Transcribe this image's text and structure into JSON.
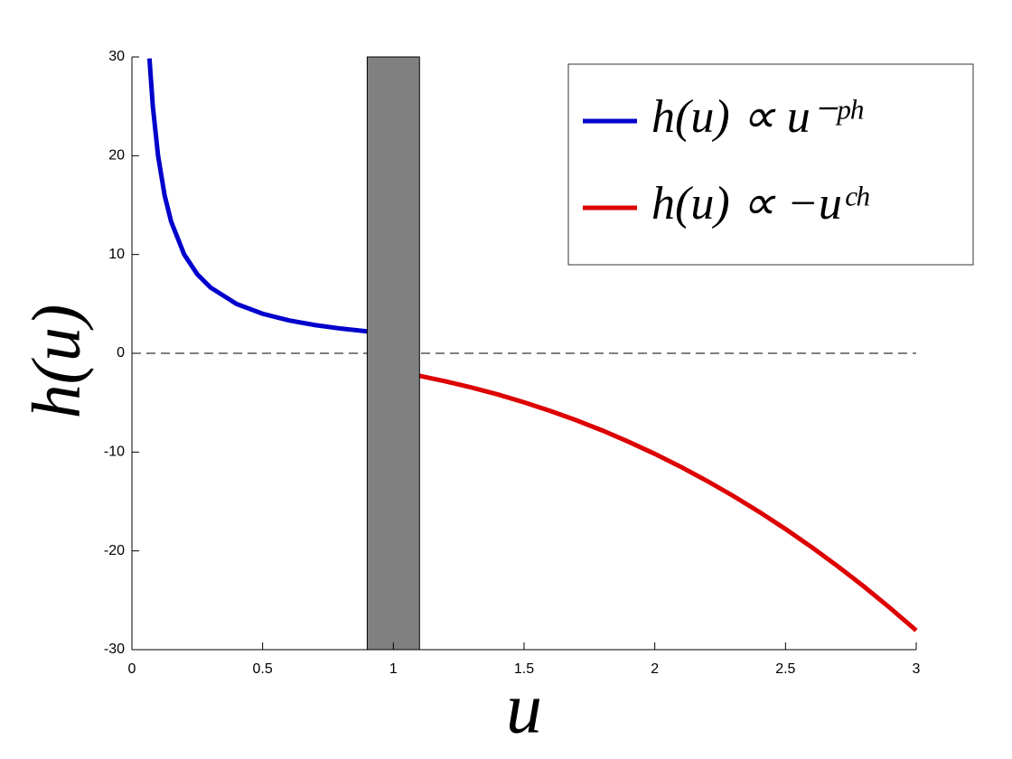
{
  "chart_data": {
    "type": "line",
    "xlabel": "u",
    "ylabel": "h(u)",
    "xlim": [
      0,
      3
    ],
    "xticks": [
      0,
      0.5,
      1,
      1.5,
      2,
      2.5,
      3
    ],
    "ylim": [
      -30,
      30
    ],
    "yticks": [
      -30,
      -20,
      -10,
      0,
      10,
      20,
      30
    ],
    "reference_line": {
      "y": 0,
      "color": "#000000",
      "dashed": true
    },
    "shaded_region": {
      "x": [
        0.9,
        1.1
      ],
      "color": "#808080"
    },
    "legend": "upper right",
    "series": [
      {
        "name": "h(u) ∝ u⁻ᵖʰ",
        "color": "#0000cc",
        "x": [
          0.067,
          0.08,
          0.1,
          0.125,
          0.15,
          0.2,
          0.25,
          0.3,
          0.4,
          0.5,
          0.6,
          0.7,
          0.8,
          0.9
        ],
        "values": [
          29.85,
          25,
          20,
          16,
          13.33,
          10,
          8,
          6.67,
          5,
          4,
          3.33,
          2.86,
          2.5,
          2.22
        ]
      },
      {
        "name": "h(u) ∝ −uᶜʰ",
        "color": "#dd0000",
        "x": [
          1.1,
          1.2,
          1.3,
          1.4,
          1.5,
          1.6,
          1.7,
          1.8,
          1.9,
          2.0,
          2.1,
          2.2,
          2.3,
          2.4,
          2.5,
          2.6,
          2.7,
          2.8,
          2.9,
          3.0
        ],
        "values": [
          -2.28,
          -2.84,
          -3.47,
          -4.17,
          -4.96,
          -5.83,
          -6.78,
          -7.82,
          -8.96,
          -10.18,
          -11.5,
          -12.92,
          -14.44,
          -16.06,
          -17.79,
          -19.62,
          -21.56,
          -23.61,
          -25.78,
          -28.06
        ]
      }
    ]
  }
}
